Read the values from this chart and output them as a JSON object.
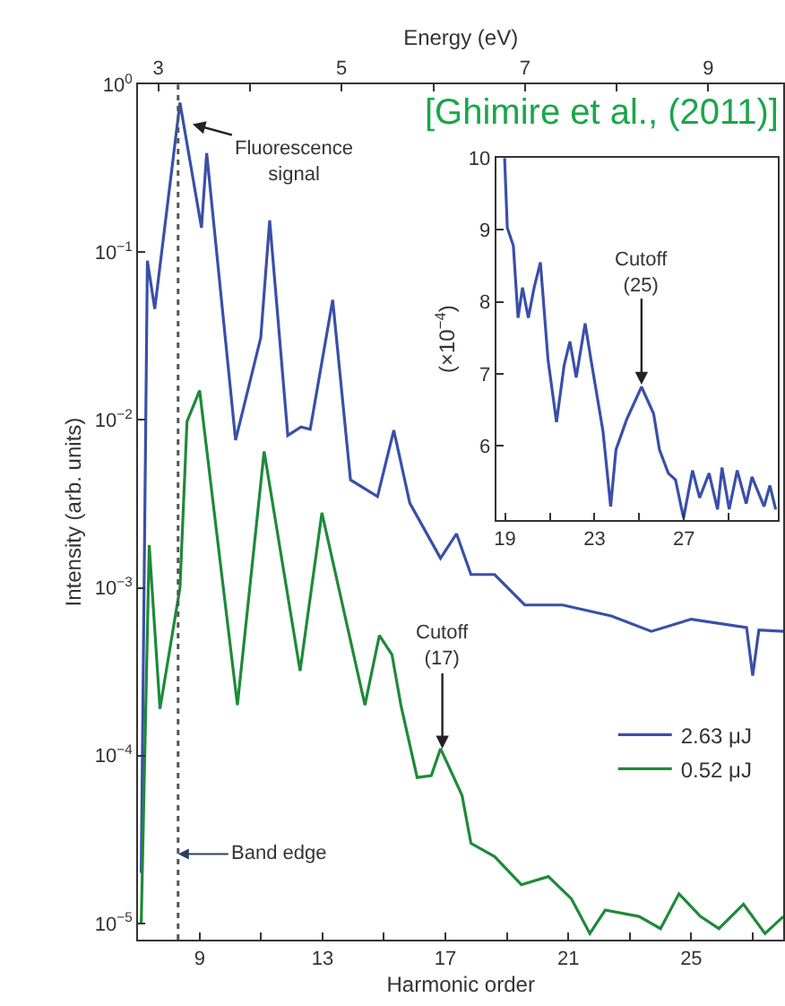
{
  "chart_data": [
    {
      "type": "line",
      "xlabel": "Harmonic order",
      "ylabel": "Intensity (arb. units)",
      "x2label": "Energy (eV)",
      "log": "y",
      "legend": "bottom right",
      "marker": "none",
      "line_style": "solid",
      "xlim": [
        7,
        28
      ],
      "xticks": [
        9,
        {
          "value": 11,
          "label": null
        },
        13,
        {
          "value": 15,
          "label": null
        },
        17,
        {
          "value": 19,
          "label": null
        },
        21,
        {
          "value": 23,
          "label": null
        },
        25,
        {
          "value": 27,
          "label": null
        }
      ],
      "x2lim": [
        2.78,
        9.82
      ],
      "x2ticks": [
        3,
        {
          "value": 4,
          "label": null
        },
        5,
        {
          "value": 6,
          "label": null
        },
        7,
        {
          "value": 8,
          "label": null
        },
        9
      ],
      "ylim": [
        8e-06,
        1
      ],
      "yticks": [
        {
          "value": 1,
          "label": "10$^{0}$"
        },
        {
          "value": 0.1,
          "label": "10$^{−1}$"
        },
        {
          "value": 0.01,
          "label": "10$^{−2}$"
        },
        {
          "value": 0.001,
          "label": "10$^{−3}$"
        },
        {
          "value": 0.0001,
          "label": "10$^{−4}$"
        },
        {
          "value": 1e-05,
          "label": "10$^{−5}$"
        }
      ],
      "series": [
        {
          "name": "2.63 μJ",
          "color": "#3a4fa8",
          "x": [
            7.1,
            7.3,
            7.54,
            8.36,
            9.06,
            9.23,
            10.17,
            10.99,
            11.28,
            11.87,
            12.3,
            12.6,
            13.33,
            13.91,
            14.79,
            15.32,
            15.84,
            16.84,
            17.36,
            17.83,
            18.6,
            19.58,
            20.81,
            22.4,
            23.7,
            25.0,
            26.8,
            27.0,
            27.2,
            28.0
          ],
          "values": [
            2e-05,
            0.089,
            0.046,
            0.78,
            0.14,
            0.39,
            0.0076,
            0.031,
            0.155,
            0.0081,
            0.0091,
            0.0088,
            0.052,
            0.0044,
            0.0035,
            0.0087,
            0.0032,
            0.0015,
            0.0021,
            0.0012,
            0.0012,
            0.00079,
            0.00079,
            0.00068,
            0.00055,
            0.00065,
            0.00058,
            0.0003,
            0.00056,
            0.00055
          ]
        },
        {
          "name": "0.52 μJ",
          "color": "#1e8a3a",
          "x": [
            7.1,
            7.36,
            7.71,
            8.36,
            8.59,
            9.0,
            10.23,
            11.1,
            12.27,
            12.98,
            14.38,
            14.85,
            15.26,
            15.55,
            16.08,
            16.54,
            16.84,
            17.54,
            17.83,
            18.6,
            19.47,
            20.35,
            21.1,
            21.7,
            22.2,
            23.3,
            24.0,
            24.6,
            25.3,
            25.9,
            26.7,
            27.4,
            28.0
          ],
          "values": [
            1e-05,
            0.0018,
            0.00019,
            0.001,
            0.0098,
            0.015,
            0.0002,
            0.0065,
            0.00032,
            0.0028,
            0.0002,
            0.00052,
            0.0004,
            0.0002,
            7.4e-05,
            7.6e-05,
            0.00011,
            5.8e-05,
            3e-05,
            2.5e-05,
            1.7e-05,
            1.9e-05,
            1.4e-05,
            8.7e-06,
            1.2e-05,
            1.1e-05,
            9.3e-06,
            1.5e-05,
            1.1e-05,
            9.3e-06,
            1.3e-05,
            8.7e-06,
            1.1e-05
          ]
        }
      ],
      "ref_lines": [
        {
          "axis": "x",
          "value": 8.3,
          "label": "Band edge",
          "color": "#555555",
          "line_style": "dotted"
        }
      ],
      "annotations": [
        {
          "text": "Fluorescence\nsignal",
          "x": 8.77,
          "y": 0.58
        },
        {
          "text": "Cutoff\n(17)",
          "x": 16.9,
          "y": 0.00011
        },
        "[Ghimire et al., (2011)]"
      ]
    },
    {
      "type": "line",
      "ylabel": "(×10$^{−4}$)",
      "marker": "none",
      "line_style": "solid",
      "xlim": [
        18.6,
        31.2
      ],
      "xticks": [
        19,
        {
          "value": 21,
          "label": null
        },
        23,
        {
          "value": 25,
          "label": null
        },
        27,
        {
          "value": 29,
          "label": null
        }
      ],
      "ylim": [
        4.97,
        10
      ],
      "yticks": [
        6,
        7,
        8,
        9,
        10
      ],
      "series": [
        {
          "color": "#3a4fa8",
          "x": [
            18.98,
            19.1,
            19.37,
            19.58,
            19.78,
            20.04,
            20.3,
            20.58,
            20.92,
            21.3,
            21.64,
            21.9,
            22.18,
            22.58,
            22.84,
            23.38,
            23.72,
            23.96,
            24.44,
            25.1,
            25.64,
            25.9,
            26.3,
            26.62,
            26.98,
            27.38,
            27.7,
            28.12,
            28.5,
            28.7,
            29.02,
            29.38,
            29.78,
            30.04,
            30.58,
            30.84,
            31.1
          ],
          "values": [
            10.0,
            9.03,
            8.78,
            7.78,
            8.2,
            7.78,
            8.2,
            8.55,
            7.2,
            6.33,
            7.12,
            7.45,
            6.95,
            7.7,
            7.2,
            6.2,
            5.16,
            5.95,
            6.37,
            6.82,
            6.45,
            5.95,
            5.62,
            5.53,
            5.0,
            5.66,
            5.28,
            5.62,
            5.12,
            5.7,
            5.12,
            5.66,
            5.2,
            5.57,
            5.16,
            5.45,
            5.12
          ]
        }
      ],
      "annotations": [
        {
          "text": "Cutoff\n(25)",
          "x": 25.1,
          "y": 6.85
        }
      ]
    }
  ]
}
